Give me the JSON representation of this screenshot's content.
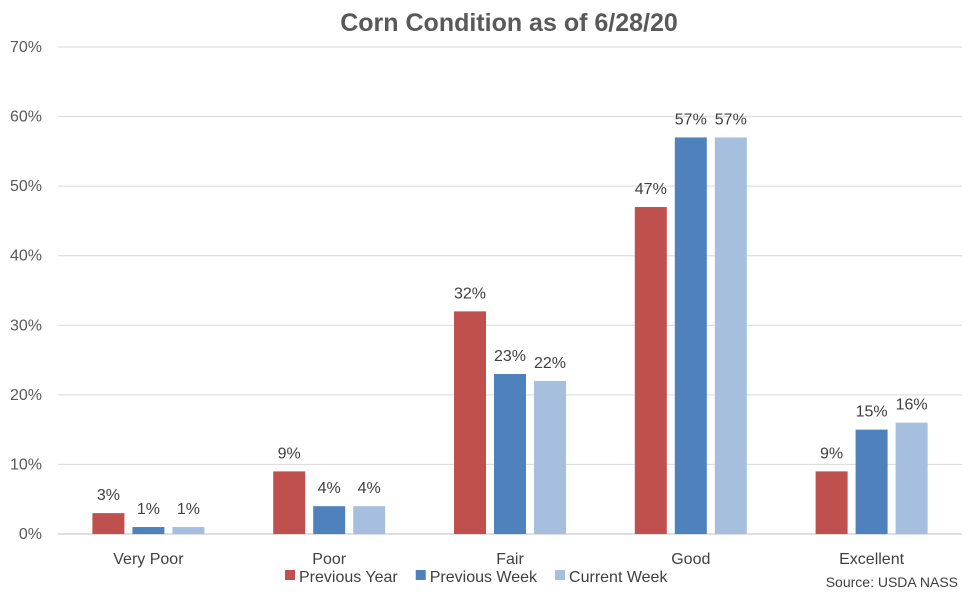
{
  "chart_data": {
    "type": "bar",
    "title": "Corn Condition as of 6/28/20",
    "categories": [
      "Very Poor",
      "Poor",
      "Fair",
      "Good",
      "Excellent"
    ],
    "series": [
      {
        "name": "Previous Year",
        "color": "#c0504d",
        "values": [
          3,
          9,
          32,
          47,
          9
        ]
      },
      {
        "name": "Previous Week",
        "color": "#4f81bd",
        "values": [
          1,
          4,
          23,
          57,
          15
        ]
      },
      {
        "name": "Current Week",
        "color": "#a7bfde",
        "values": [
          1,
          4,
          22,
          57,
          16
        ]
      }
    ],
    "ylim": [
      0,
      70
    ],
    "ytick_step": 10,
    "value_suffix": "%",
    "grid": true,
    "legend_position": "bottom-center",
    "source": "Source: USDA NASS"
  }
}
